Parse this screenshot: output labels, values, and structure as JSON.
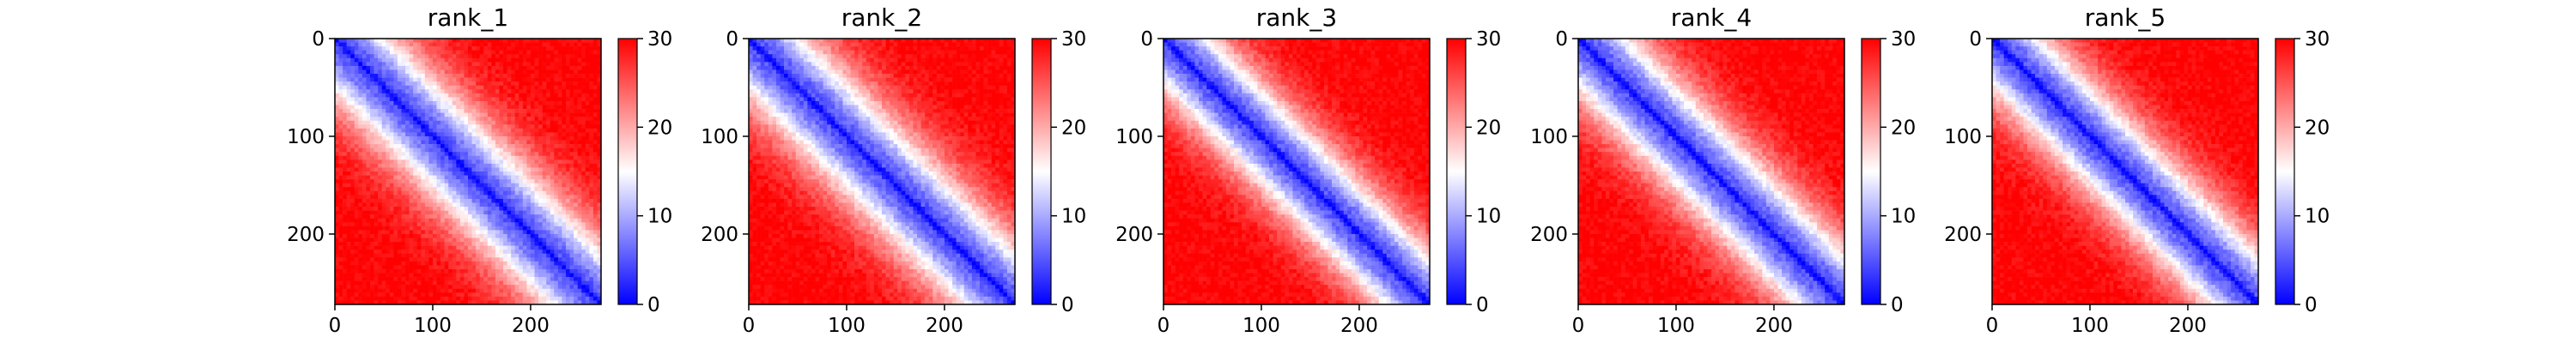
{
  "chart_data": [
    {
      "type": "heatmap",
      "title": "rank_1",
      "x_ticks": [
        "0",
        "100",
        "200"
      ],
      "y_ticks": [
        "0",
        "100",
        "200"
      ],
      "xlim": [
        0,
        272
      ],
      "ylim": [
        272,
        0
      ],
      "colorbar": {
        "ticks": [
          "0",
          "10",
          "20",
          "30"
        ],
        "range": [
          0,
          30
        ],
        "colors": [
          "#0000ff",
          "#ffffff",
          "#ff0000"
        ]
      },
      "distance_profile": {
        "near_band": 8,
        "transition_width": 60,
        "n_residues": 272
      }
    },
    {
      "type": "heatmap",
      "title": "rank_2",
      "x_ticks": [
        "0",
        "100",
        "200"
      ],
      "y_ticks": [
        "0",
        "100",
        "200"
      ],
      "xlim": [
        0,
        272
      ],
      "ylim": [
        272,
        0
      ],
      "colorbar": {
        "ticks": [
          "0",
          "10",
          "20",
          "30"
        ],
        "range": [
          0,
          30
        ],
        "colors": [
          "#0000ff",
          "#ffffff",
          "#ff0000"
        ]
      },
      "distance_profile": {
        "near_band": 8,
        "transition_width": 60,
        "n_residues": 272
      }
    },
    {
      "type": "heatmap",
      "title": "rank_3",
      "x_ticks": [
        "0",
        "100",
        "200"
      ],
      "y_ticks": [
        "0",
        "100",
        "200"
      ],
      "xlim": [
        0,
        272
      ],
      "ylim": [
        272,
        0
      ],
      "colorbar": {
        "ticks": [
          "0",
          "10",
          "20",
          "30"
        ],
        "range": [
          0,
          30
        ],
        "colors": [
          "#0000ff",
          "#ffffff",
          "#ff0000"
        ]
      },
      "distance_profile": {
        "near_band": 8,
        "transition_width": 52,
        "n_residues": 272
      }
    },
    {
      "type": "heatmap",
      "title": "rank_4",
      "x_ticks": [
        "0",
        "100",
        "200"
      ],
      "y_ticks": [
        "0",
        "100",
        "200"
      ],
      "xlim": [
        0,
        272
      ],
      "ylim": [
        272,
        0
      ],
      "colorbar": {
        "ticks": [
          "0",
          "10",
          "20",
          "30"
        ],
        "range": [
          0,
          30
        ],
        "colors": [
          "#0000ff",
          "#ffffff",
          "#ff0000"
        ]
      },
      "distance_profile": {
        "near_band": 8,
        "transition_width": 56,
        "n_residues": 272
      }
    },
    {
      "type": "heatmap",
      "title": "rank_5",
      "x_ticks": [
        "0",
        "100",
        "200"
      ],
      "y_ticks": [
        "0",
        "100",
        "200"
      ],
      "xlim": [
        0,
        272
      ],
      "ylim": [
        272,
        0
      ],
      "colorbar": {
        "ticks": [
          "0",
          "10",
          "20",
          "30"
        ],
        "range": [
          0,
          30
        ],
        "colors": [
          "#0000ff",
          "#ffffff",
          "#ff0000"
        ]
      },
      "distance_profile": {
        "near_band": 8,
        "transition_width": 54,
        "n_residues": 272
      }
    }
  ]
}
